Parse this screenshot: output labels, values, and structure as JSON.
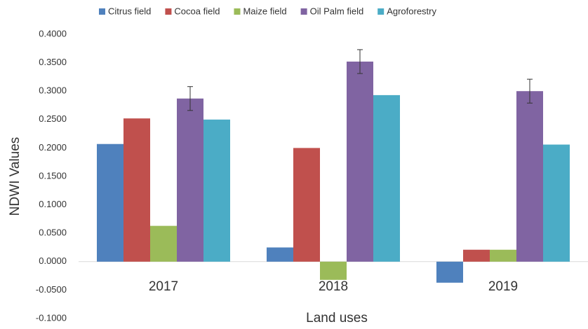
{
  "chart_data": {
    "type": "bar",
    "x_label": "Land uses",
    "y_label": "NDWI Values",
    "categories": [
      "2017",
      "2018",
      "2019"
    ],
    "series": [
      {
        "name": "Citrus field",
        "color": "#4f81bd",
        "values": [
          0.207,
          0.025,
          -0.037
        ]
      },
      {
        "name": "Cocoa field",
        "color": "#c0504d",
        "values": [
          0.252,
          0.2,
          0.021
        ]
      },
      {
        "name": "Maize field",
        "color": "#9bbb59",
        "values": [
          0.063,
          -0.032,
          0.021
        ]
      },
      {
        "name": "Oil Palm field",
        "color": "#8064a2",
        "values": [
          0.287,
          0.352,
          0.3
        ],
        "errors": [
          0.021,
          0.021,
          0.021
        ]
      },
      {
        "name": "Agroforestry",
        "color": "#4bacc6",
        "values": [
          0.25,
          0.293,
          0.206
        ]
      }
    ],
    "ylim": [
      -0.1,
      0.4
    ],
    "yticks": [
      {
        "value": -0.1,
        "label": "-0.1000"
      },
      {
        "value": -0.05,
        "label": "-0.0500"
      },
      {
        "value": 0,
        "label": "0.0000"
      },
      {
        "value": 0.05,
        "label": "0.0500"
      },
      {
        "value": 0.1,
        "label": "0.1000"
      },
      {
        "value": 0.15,
        "label": "0.1500"
      },
      {
        "value": 0.2,
        "label": "0.2000"
      },
      {
        "value": 0.25,
        "label": "0.2500"
      },
      {
        "value": 0.3,
        "label": "0.3000"
      },
      {
        "value": 0.35,
        "label": "0.3500"
      },
      {
        "value": 0.4,
        "label": "0.4000"
      }
    ],
    "grid": false,
    "legend": "top"
  }
}
